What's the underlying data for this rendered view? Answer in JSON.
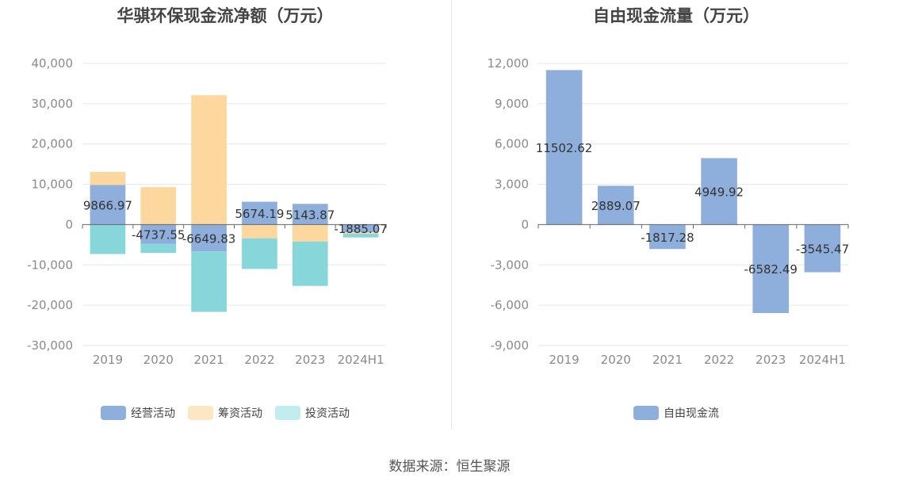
{
  "source_text": "数据来源：恒生聚源",
  "chart_data": [
    {
      "type": "bar",
      "stacked": true,
      "title": "华骐环保现金流净额（万元）",
      "categories": [
        "2019",
        "2020",
        "2021",
        "2022",
        "2023",
        "2024H1"
      ],
      "ylim": [
        -30000,
        40000
      ],
      "yticks": [
        40000,
        30000,
        20000,
        10000,
        0,
        -10000,
        -20000,
        -30000
      ],
      "ytick_labels": [
        "40,000",
        "30,000",
        "20,000",
        "10,000",
        "0",
        "-10,000",
        "-20,000",
        "-30,000"
      ],
      "grid": true,
      "legend_position": "bottom",
      "series": [
        {
          "name": "经营活动",
          "color": "#8eaedb",
          "values": [
            9866.97,
            -4737.55,
            -6649.83,
            5674.19,
            5143.87,
            -1885.07
          ]
        },
        {
          "name": "筹资活动",
          "color": "#fdd89e",
          "values": [
            3200,
            9300,
            32100,
            -3400,
            -4200,
            -400
          ]
        },
        {
          "name": "投资活动",
          "color": "#86d6da",
          "values": [
            -7300,
            -2300,
            -15000,
            -7600,
            -11000,
            -900
          ]
        }
      ],
      "data_labels": [
        "9866.97",
        "-4737.55",
        "-6649.83",
        "5674.19",
        "5143.87",
        "-1885.07"
      ]
    },
    {
      "type": "bar",
      "title": "自由现金流量（万元）",
      "categories": [
        "2019",
        "2020",
        "2021",
        "2022",
        "2023",
        "2024H1"
      ],
      "ylim": [
        -9000,
        12000
      ],
      "yticks": [
        12000,
        9000,
        6000,
        3000,
        0,
        -3000,
        -6000,
        -9000
      ],
      "ytick_labels": [
        "12,000",
        "9,000",
        "6,000",
        "3,000",
        "0",
        "-3,000",
        "-6,000",
        "-9,000"
      ],
      "grid": true,
      "legend_position": "bottom",
      "series": [
        {
          "name": "自由现金流",
          "color": "#8eaedb",
          "values": [
            11502.62,
            2889.07,
            -1817.28,
            4949.92,
            -6582.49,
            -3545.47
          ]
        }
      ],
      "data_labels": [
        "11502.62",
        "2889.07",
        "-1817.28",
        "4949.92",
        "-6582.49",
        "-3545.47"
      ]
    }
  ]
}
